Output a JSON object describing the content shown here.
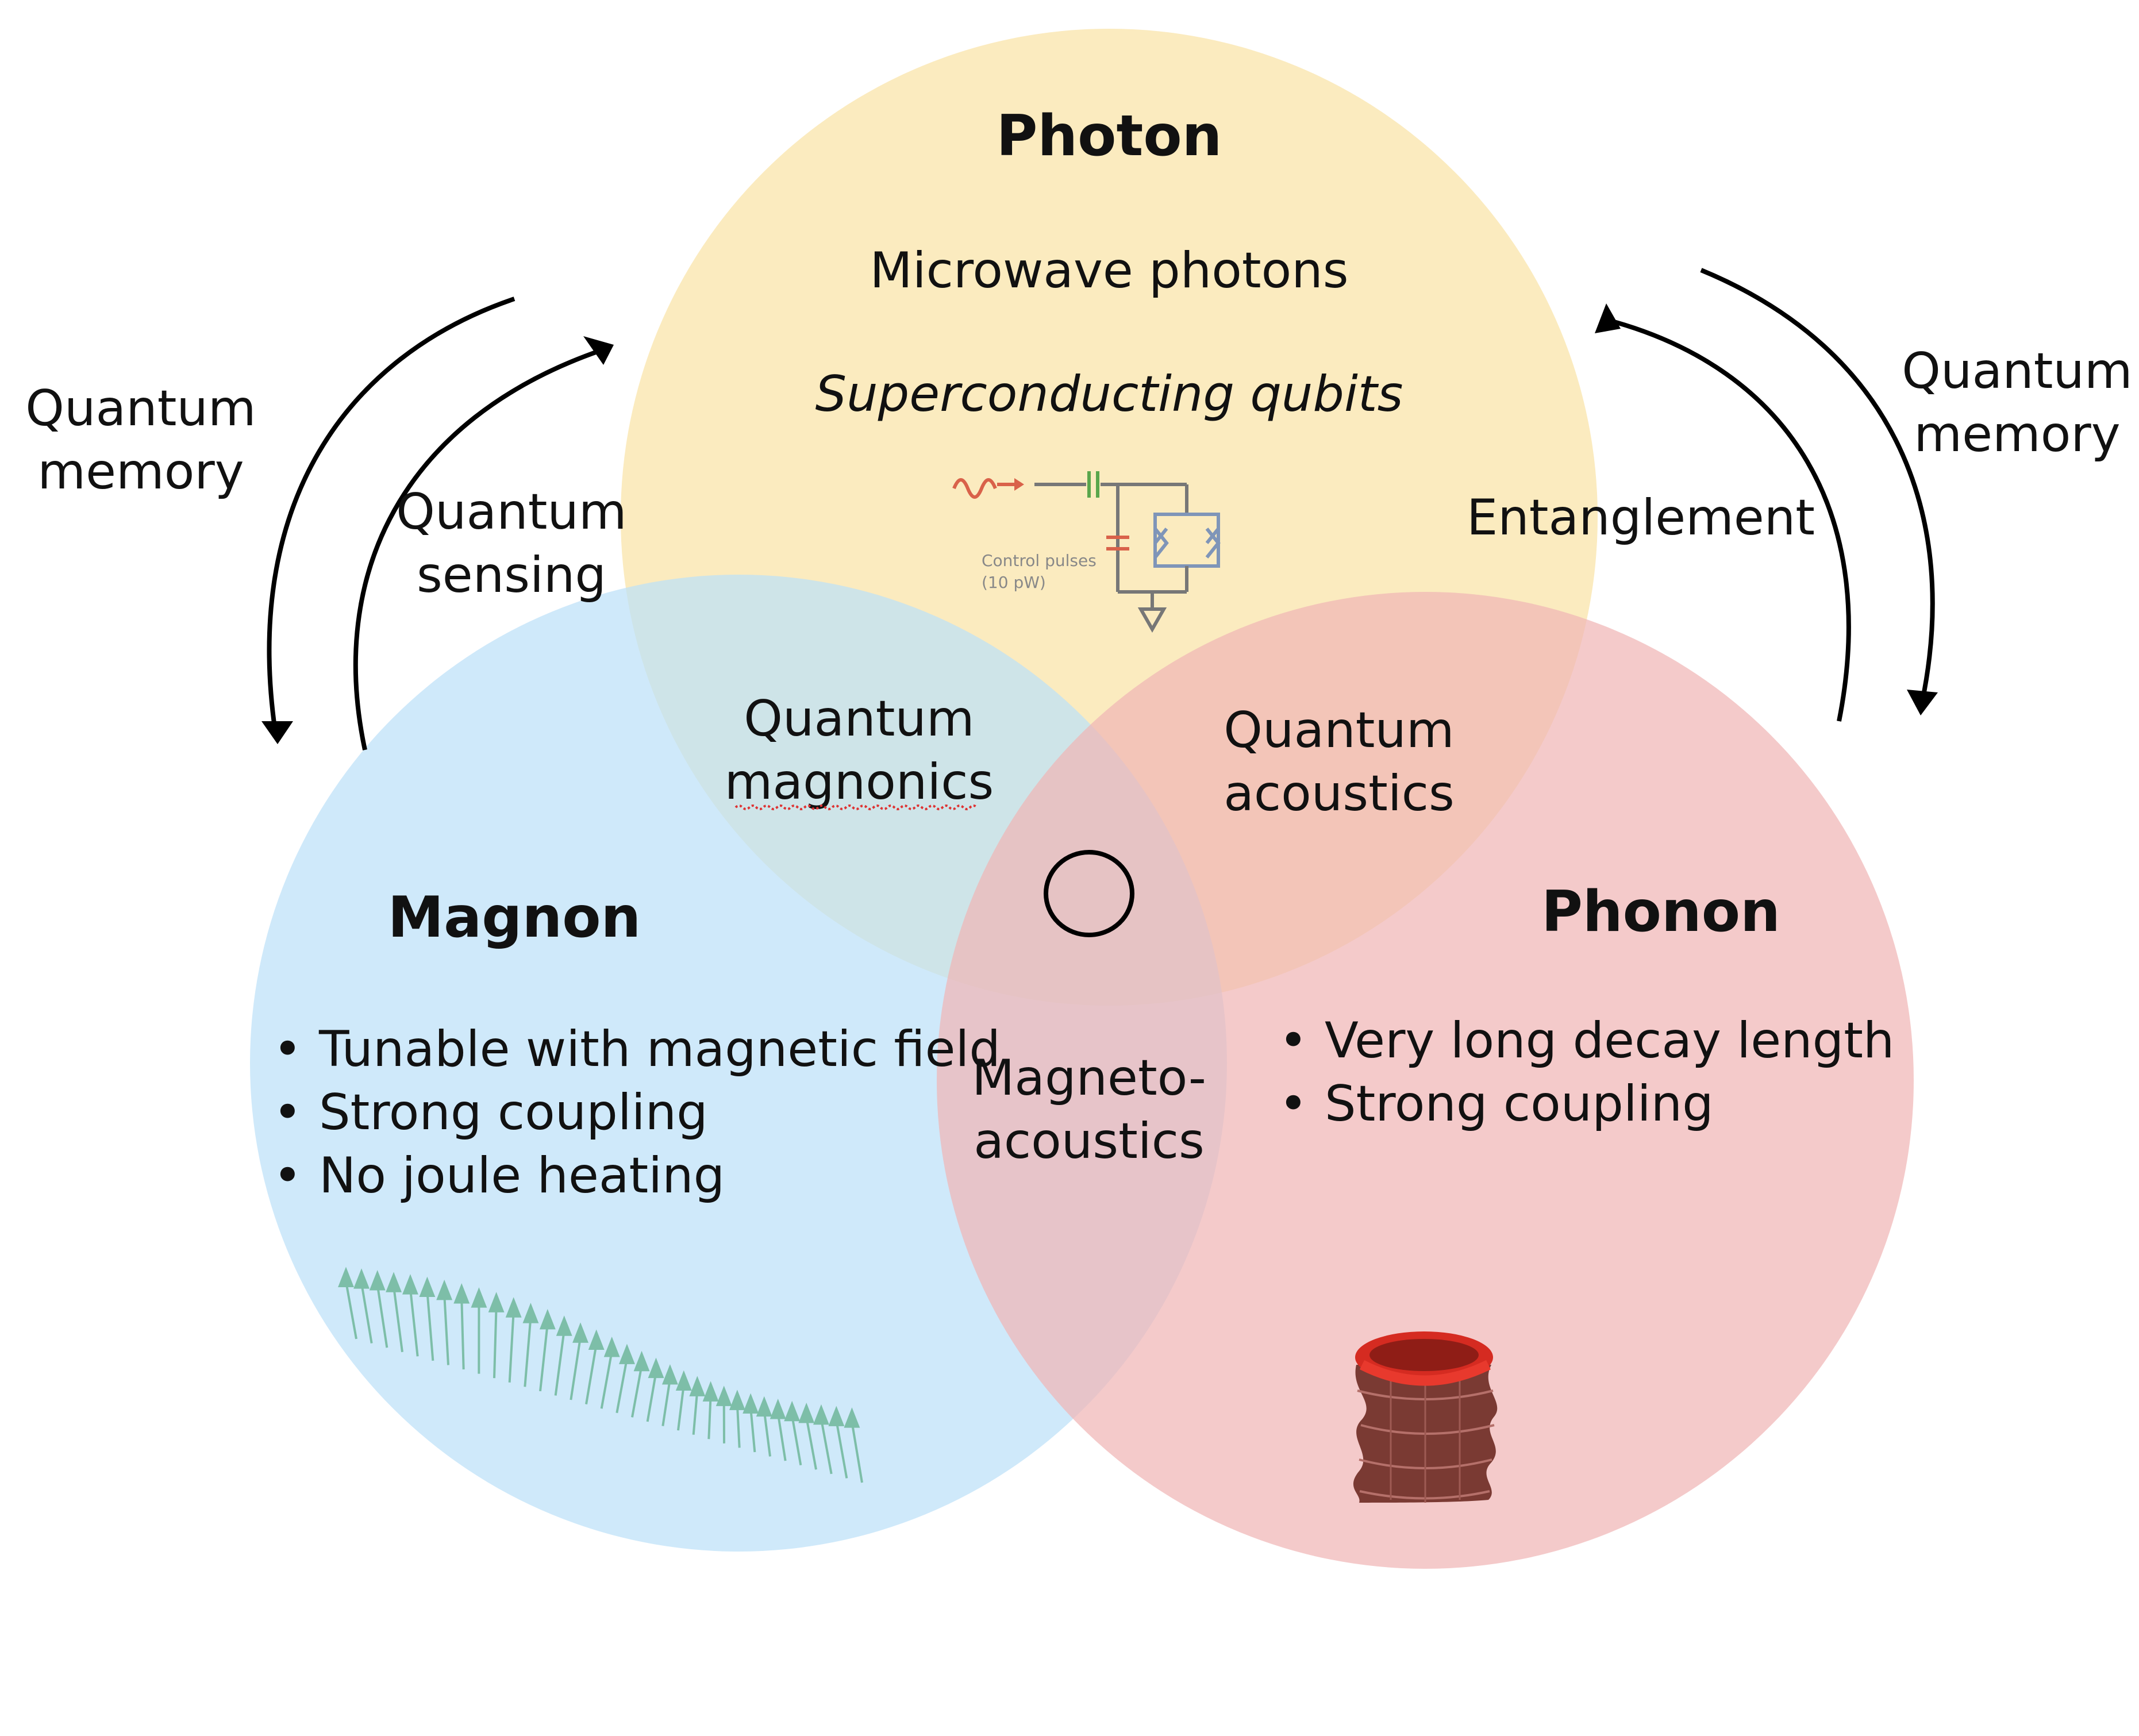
{
  "circles": {
    "photon": {
      "title": "Photon",
      "line1": "Microwave photons",
      "line2": "Superconducting qubits",
      "color": "#f9e3a6"
    },
    "magnon": {
      "title": "Magnon",
      "bullets": [
        "Tunable with magnetic field",
        "Strong coupling",
        "No joule heating"
      ],
      "color": "#bde0f8"
    },
    "phonon": {
      "title": "Phonon",
      "bullets": [
        "Very long decay length",
        "Strong coupling"
      ],
      "color": "#f0b5b5"
    }
  },
  "overlaps": {
    "photon_magnon": [
      "Quantum",
      "magnonics"
    ],
    "photon_phonon": [
      "Quantum",
      "acoustics"
    ],
    "magnon_phonon": [
      "Magneto-",
      "acoustics"
    ]
  },
  "arrows": {
    "left_outer": [
      "Quantum",
      "memory"
    ],
    "left_inner": [
      "Quantum",
      "sensing"
    ],
    "right_inner": "Entanglement",
    "right_outer": [
      "Quantum",
      "memory"
    ]
  },
  "circuit": {
    "caption": [
      "Control pulses",
      "(10 pW)"
    ]
  },
  "bullet_char": "•",
  "icons": [
    "control-pulse-circuit-icon",
    "spin-wave-arrows-icon",
    "mechanical-resonator-icon"
  ]
}
